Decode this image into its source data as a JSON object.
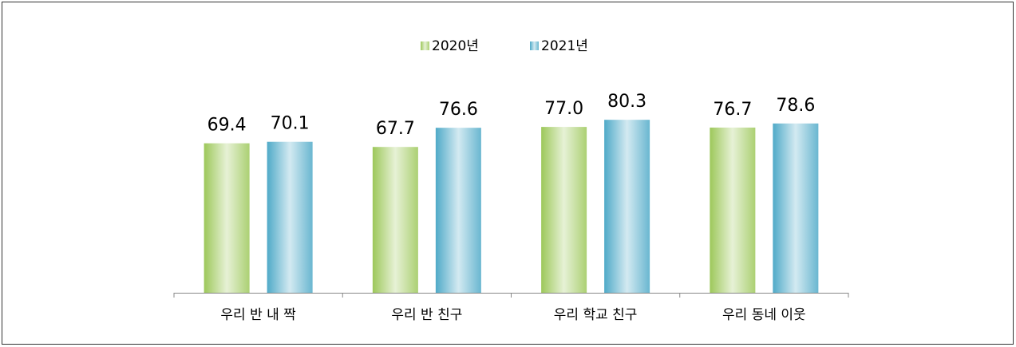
{
  "chart_data": {
    "type": "bar",
    "categories": [
      "우리 반 내 짝",
      "우리 반 친구",
      "우리 학교 친구",
      "우리 동네 이웃"
    ],
    "series": [
      {
        "name": "2020년",
        "color": "#9dc85a",
        "values": [
          69.4,
          67.7,
          77.0,
          76.7
        ],
        "value_labels": [
          "69.4",
          "67.7",
          "77.0",
          "76.7"
        ]
      },
      {
        "name": "2021년",
        "color": "#4faac8",
        "values": [
          70.1,
          76.6,
          80.3,
          78.6
        ],
        "value_labels": [
          "70.1",
          "76.6",
          "80.3",
          "78.6"
        ]
      }
    ],
    "ylim": [
      0,
      100
    ],
    "legend": "top"
  }
}
